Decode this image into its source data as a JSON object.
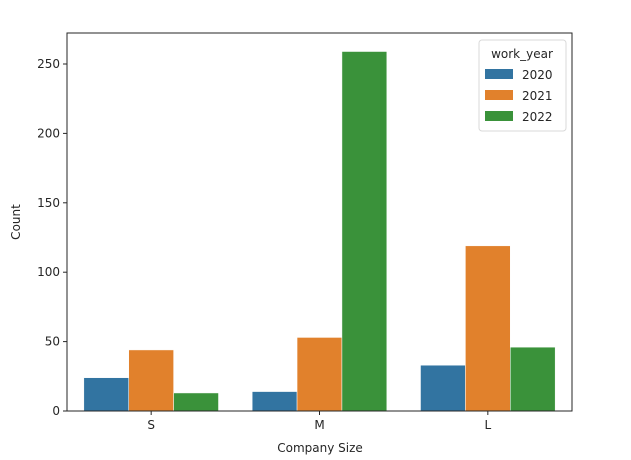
{
  "chart_data": {
    "type": "bar",
    "title": "",
    "xlabel": "Company Size",
    "ylabel": "Count",
    "categories": [
      "S",
      "M",
      "L"
    ],
    "series": [
      {
        "name": "2020",
        "color": "#3274a1",
        "values": [
          24,
          14,
          33
        ]
      },
      {
        "name": "2021",
        "color": "#e1812c",
        "values": [
          44,
          53,
          119
        ]
      },
      {
        "name": "2022",
        "color": "#3a923a",
        "values": [
          13,
          259,
          46
        ]
      }
    ],
    "ylim": [
      0,
      272
    ],
    "yticks": [
      0,
      50,
      100,
      150,
      200,
      250
    ],
    "legend": {
      "title": "work_year",
      "position": "upper right"
    },
    "grid": false
  }
}
